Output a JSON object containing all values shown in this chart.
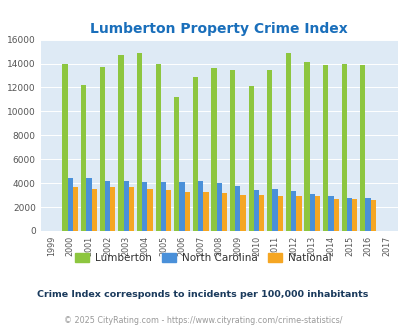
{
  "title": "Lumberton Property Crime Index",
  "title_color": "#1a6fbb",
  "years": [
    1999,
    2000,
    2001,
    2002,
    2003,
    2004,
    2005,
    2006,
    2007,
    2008,
    2009,
    2010,
    2011,
    2012,
    2013,
    2014,
    2015,
    2016,
    2017
  ],
  "lumberton": [
    0,
    14000,
    12200,
    13700,
    14700,
    14900,
    14000,
    11200,
    12900,
    13600,
    13500,
    12100,
    13500,
    14900,
    14100,
    13900,
    14000,
    13900,
    0
  ],
  "nc": [
    0,
    4400,
    4400,
    4200,
    4200,
    4100,
    4100,
    4100,
    4200,
    4000,
    3750,
    3450,
    3550,
    3350,
    3100,
    2900,
    2800,
    2800,
    0
  ],
  "national": [
    0,
    3650,
    3550,
    3700,
    3650,
    3550,
    3450,
    3300,
    3300,
    3200,
    3050,
    3000,
    2950,
    2900,
    2950,
    2700,
    2650,
    2550,
    0
  ],
  "lumberton_color": "#8dc63f",
  "nc_color": "#4a90d9",
  "national_color": "#f5a623",
  "bg_color": "#deeaf5",
  "ylim": [
    0,
    16000
  ],
  "yticks": [
    0,
    2000,
    4000,
    6000,
    8000,
    10000,
    12000,
    14000,
    16000
  ],
  "subtitle": "Crime Index corresponds to incidents per 100,000 inhabitants",
  "footer": "© 2025 CityRating.com - https://www.cityrating.com/crime-statistics/",
  "subtitle_color": "#1a3a5c",
  "footer_color": "#999999",
  "bar_width": 0.85
}
